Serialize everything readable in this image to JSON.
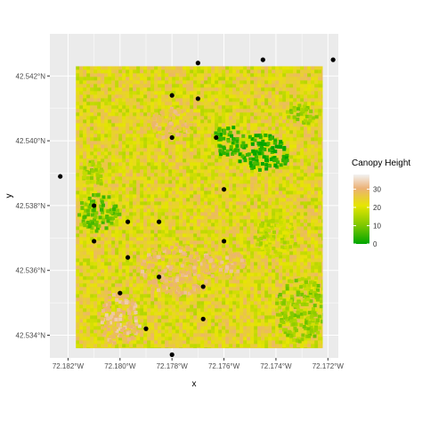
{
  "chart_data": {
    "type": "raster-map",
    "xlabel": "x",
    "ylabel": "y",
    "x_ticks": [
      "72.182°W",
      "72.180°W",
      "72.178°W",
      "72.176°W",
      "72.174°W",
      "72.172°W"
    ],
    "y_ticks": [
      "42.534°N",
      "42.536°N",
      "42.538°N",
      "42.540°N",
      "42.542°N"
    ],
    "x_tick_values": [
      -72.182,
      -72.18,
      -72.178,
      -72.176,
      -72.174,
      -72.172
    ],
    "y_tick_values": [
      42.534,
      42.536,
      42.538,
      42.54,
      42.542
    ],
    "xlim": [
      -72.1827,
      -72.1716
    ],
    "ylim": [
      42.5333,
      42.5433
    ],
    "raster_extent": {
      "lon": [
        -72.1817,
        -72.1722
      ],
      "lat": [
        42.5336,
        42.5423
      ]
    },
    "grid": true,
    "background": "#ebebeb",
    "legend": {
      "title": "Canopy Height",
      "position": "right",
      "breaks": [
        0,
        10,
        20,
        30
      ],
      "labels": [
        "0",
        "10",
        "20",
        "30"
      ],
      "range": [
        0,
        38
      ],
      "colors": [
        "#00a600",
        "#e6e600",
        "#ecb176",
        "#f2f2f2"
      ]
    },
    "points": [
      {
        "lon": -72.177,
        "lat": 42.5424
      },
      {
        "lon": -72.1745,
        "lat": 42.5425
      },
      {
        "lon": -72.1718,
        "lat": 42.5425
      },
      {
        "lon": -72.178,
        "lat": 42.5414
      },
      {
        "lon": -72.177,
        "lat": 42.5413
      },
      {
        "lon": -72.178,
        "lat": 42.5401
      },
      {
        "lon": -72.1763,
        "lat": 42.5401
      },
      {
        "lon": -72.1823,
        "lat": 42.5389
      },
      {
        "lon": -72.176,
        "lat": 42.5385
      },
      {
        "lon": -72.181,
        "lat": 42.538
      },
      {
        "lon": -72.1797,
        "lat": 42.5375
      },
      {
        "lon": -72.1785,
        "lat": 42.5375
      },
      {
        "lon": -72.181,
        "lat": 42.5369
      },
      {
        "lon": -72.176,
        "lat": 42.5369
      },
      {
        "lon": -72.1797,
        "lat": 42.5364
      },
      {
        "lon": -72.1785,
        "lat": 42.5358
      },
      {
        "lon": -72.1768,
        "lat": 42.5355
      },
      {
        "lon": -72.18,
        "lat": 42.5353
      },
      {
        "lon": -72.179,
        "lat": 42.5342
      },
      {
        "lon": -72.1768,
        "lat": 42.5345
      },
      {
        "lon": -72.178,
        "lat": 42.5334
      }
    ],
    "canopy_patches": [
      {
        "lon": -72.1745,
        "lat": 42.5396,
        "rx": 0.001,
        "ry": 0.0006,
        "height": 2
      },
      {
        "lon": -72.1758,
        "lat": 42.54,
        "rx": 0.0006,
        "ry": 0.0005,
        "height": 4
      },
      {
        "lon": -72.1808,
        "lat": 42.5378,
        "rx": 0.0008,
        "ry": 0.0006,
        "height": 8
      },
      {
        "lon": -72.181,
        "lat": 42.539,
        "rx": 0.0005,
        "ry": 0.0004,
        "height": 14
      },
      {
        "lon": -72.173,
        "lat": 42.5408,
        "rx": 0.0006,
        "ry": 0.0003,
        "height": 12
      },
      {
        "lon": -72.173,
        "lat": 42.5348,
        "rx": 0.001,
        "ry": 0.001,
        "height": 12
      },
      {
        "lon": -72.174,
        "lat": 42.537,
        "rx": 0.0008,
        "ry": 0.0006,
        "height": 17
      },
      {
        "lon": -72.178,
        "lat": 42.5405,
        "rx": 0.0008,
        "ry": 0.0005,
        "height": 28
      },
      {
        "lon": -72.1778,
        "lat": 42.536,
        "rx": 0.0015,
        "ry": 0.0008,
        "height": 29
      },
      {
        "lon": -72.18,
        "lat": 42.5345,
        "rx": 0.0008,
        "ry": 0.0008,
        "height": 30
      },
      {
        "lon": -72.1758,
        "lat": 42.5362,
        "rx": 0.0006,
        "ry": 0.0004,
        "height": 29
      }
    ],
    "base_height": 22
  }
}
